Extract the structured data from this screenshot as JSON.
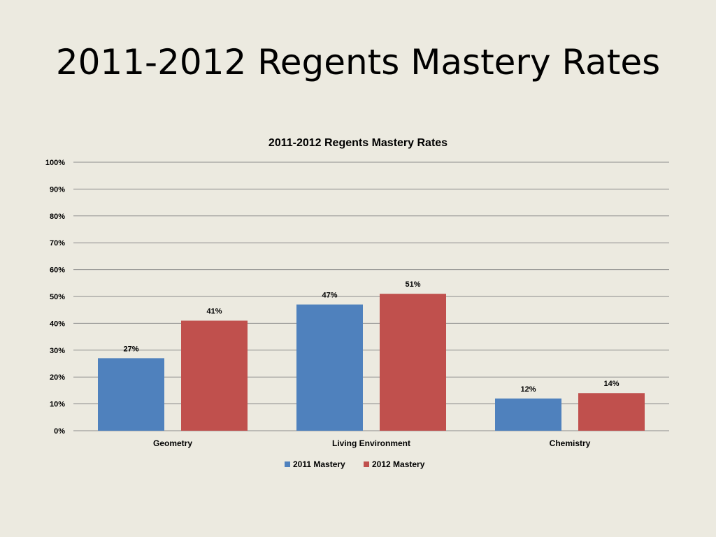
{
  "slide": {
    "title": "2011-2012 Regents Mastery Rates"
  },
  "chart_data": {
    "type": "bar",
    "title": "2011-2012 Regents Mastery Rates",
    "xlabel": "",
    "ylabel": "",
    "categories": [
      "Geometry",
      "Living Environment",
      "Chemistry"
    ],
    "series": [
      {
        "name": "2011 Mastery",
        "color": "#4F81BD",
        "values": [
          27,
          47,
          12
        ],
        "labels": [
          "27%",
          "47%",
          "12%"
        ]
      },
      {
        "name": "2012 Mastery",
        "color": "#C0504D",
        "values": [
          41,
          51,
          14
        ],
        "labels": [
          "41%",
          "51%",
          "14%"
        ]
      }
    ],
    "ylim": [
      0,
      100
    ],
    "yticks": [
      0,
      10,
      20,
      30,
      40,
      50,
      60,
      70,
      80,
      90,
      100
    ],
    "ytick_labels": [
      "0%",
      "10%",
      "20%",
      "30%",
      "40%",
      "50%",
      "60%",
      "70%",
      "80%",
      "90%",
      "100%"
    ],
    "grid": true,
    "legend_position": "bottom"
  }
}
